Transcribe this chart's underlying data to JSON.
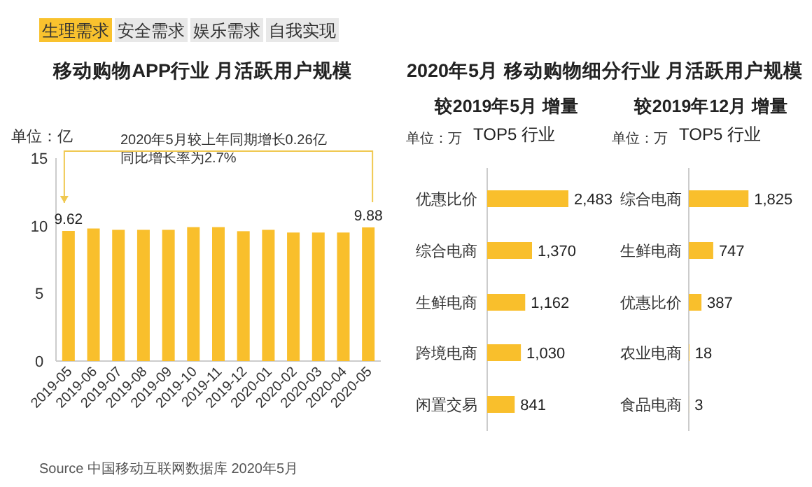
{
  "chart_data": [
    {
      "type": "bar",
      "title": "移动购物APP行业 月活跃用户规模",
      "ylabel": "单位：亿",
      "categories": [
        "2019-05",
        "2019-06",
        "2019-07",
        "2019-08",
        "2019-09",
        "2019-10",
        "2019-11",
        "2019-12",
        "2020-01",
        "2020-02",
        "2020-03",
        "2020-04",
        "2020-05"
      ],
      "values": [
        9.62,
        9.8,
        9.7,
        9.7,
        9.7,
        9.9,
        9.9,
        9.6,
        9.7,
        9.5,
        9.5,
        9.5,
        9.88
      ],
      "value_labels": [
        "9.62",
        null,
        null,
        null,
        null,
        null,
        null,
        null,
        null,
        null,
        null,
        null,
        "9.88"
      ],
      "color": "#f9bf2c",
      "ylim": [
        0,
        15
      ],
      "yticks": [
        0,
        5,
        10,
        15
      ],
      "grid": false,
      "annotations": [
        "生理需求",
        "安全需求",
        "娱乐需求",
        "自我实现",
        "2020年5月较上年同期增长0.26亿",
        "同比增长率为2.7%",
        "Source  中国移动互联网数据库 2020年5月"
      ]
    },
    {
      "type": "bar",
      "orientation": "horizontal",
      "title": "2020年5月 移动购物细分行业 月活跃用户规模",
      "subtitle": "较2019年5月 增量",
      "categories": [
        "优惠比价",
        "综合电商",
        "生鲜电商",
        "跨境电商",
        "闲置交易"
      ],
      "values": [
        2483,
        1370,
        1162,
        1030,
        841
      ],
      "color": "#f9bf2c",
      "value_labels": [
        "2,483",
        "1,370",
        "1,162",
        "1,030",
        "841"
      ],
      "annotations": [
        "单位：万",
        "TOP5 行业"
      ]
    },
    {
      "type": "bar",
      "orientation": "horizontal",
      "subtitle": "较2019年12月 增量",
      "categories": [
        "综合电商",
        "生鲜电商",
        "优惠比价",
        "农业电商",
        "食品电商"
      ],
      "values": [
        1825,
        747,
        387,
        18,
        3
      ],
      "color": "#f9bf2c",
      "value_labels": [
        "1,825",
        "747",
        "387",
        "18",
        "3"
      ],
      "annotations": [
        "单位：万",
        "TOP5 行业"
      ]
    }
  ]
}
